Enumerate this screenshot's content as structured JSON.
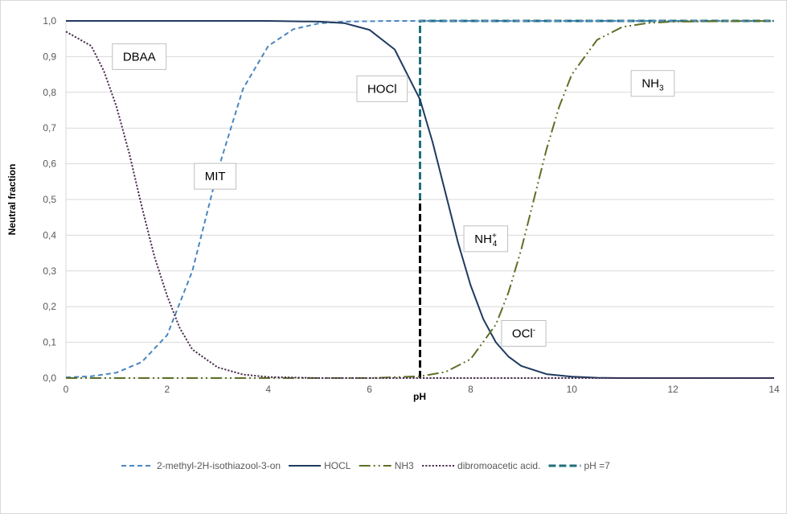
{
  "chart_data": {
    "type": "line",
    "xlabel": "pH",
    "ylabel": "Neutral fraction",
    "xlim": [
      0,
      14
    ],
    "ylim": [
      0,
      1
    ],
    "grid": true,
    "legend_placement": "bottom",
    "x_ticks": [
      "0",
      "2",
      "4",
      "6",
      "8",
      "10",
      "12",
      "14"
    ],
    "y_ticks": [
      "0,0",
      "0,1",
      "0,2",
      "0,3",
      "0,4",
      "0,5",
      "0,6",
      "0,7",
      "0,8",
      "0,9",
      "1,0"
    ],
    "series": [
      {
        "name": "2-methyl-2H-isothiazool-3-on",
        "color": "#4a86c0",
        "style": "dash",
        "x": [
          0,
          0.5,
          1,
          1.5,
          2,
          2.5,
          3,
          3.5,
          4,
          4.5,
          5,
          5.5,
          6,
          6.5,
          7,
          8,
          10,
          14
        ],
        "y": [
          0.002,
          0.005,
          0.015,
          0.045,
          0.12,
          0.3,
          0.58,
          0.81,
          0.93,
          0.977,
          0.993,
          0.998,
          0.999,
          1.0,
          1.0,
          1.0,
          1.0,
          1.0
        ]
      },
      {
        "name": "HOCL",
        "color": "#1f3a5f",
        "style": "solid",
        "x": [
          0,
          4,
          5,
          5.5,
          6,
          6.5,
          7,
          7.25,
          7.5,
          7.75,
          8,
          8.25,
          8.5,
          8.75,
          9,
          9.5,
          10,
          10.5,
          11,
          14
        ],
        "y": [
          1.0,
          1.0,
          0.998,
          0.994,
          0.975,
          0.92,
          0.78,
          0.66,
          0.52,
          0.38,
          0.26,
          0.165,
          0.1,
          0.06,
          0.034,
          0.011,
          0.004,
          0.001,
          0.0,
          0.0
        ]
      },
      {
        "name": "NH3",
        "color": "#5d7027",
        "style": "dashdotdot",
        "x": [
          0,
          6,
          7,
          7.5,
          8,
          8.5,
          8.75,
          9,
          9.25,
          9.5,
          9.75,
          10,
          10.5,
          11,
          11.5,
          12,
          14
        ],
        "y": [
          0.0,
          0.0,
          0.005,
          0.017,
          0.053,
          0.15,
          0.24,
          0.36,
          0.5,
          0.64,
          0.76,
          0.85,
          0.947,
          0.983,
          0.994,
          0.998,
          1.0
        ]
      },
      {
        "name": "dibromoacetic acid.",
        "color": "#4b2d4f",
        "style": "dot",
        "x": [
          0,
          0.5,
          0.75,
          1,
          1.25,
          1.5,
          1.75,
          2,
          2.25,
          2.5,
          3,
          3.5,
          4,
          5,
          6,
          14
        ],
        "y": [
          0.97,
          0.93,
          0.86,
          0.76,
          0.63,
          0.48,
          0.34,
          0.23,
          0.14,
          0.08,
          0.03,
          0.01,
          0.003,
          0.0,
          0.0,
          0.0
        ]
      },
      {
        "name": "pH =7",
        "color": "#1f6f7a",
        "style": "longdash",
        "x": [
          7,
          7,
          14
        ],
        "y": [
          0,
          1,
          1
        ]
      }
    ],
    "annotations": [
      {
        "id": "dbaa",
        "text": "DBAA",
        "x": 1.45,
        "y": 0.9,
        "color": "#000000"
      },
      {
        "id": "mit",
        "text": "MIT",
        "x": 2.95,
        "y": 0.565,
        "color": "#000000"
      },
      {
        "id": "hocl",
        "text": "HOCl",
        "x": 6.25,
        "y": 0.81,
        "color": "#000000"
      },
      {
        "id": "nh3",
        "text": "NH",
        "sub": "3",
        "x": 11.6,
        "y": 0.825,
        "color": "#000000"
      },
      {
        "id": "nh4",
        "text": "NH",
        "sup": "+",
        "sub": "4",
        "x": 8.3,
        "y": 0.39,
        "color": "#000000"
      },
      {
        "id": "ocl",
        "text": "OCl",
        "sup": "-",
        "x": 9.05,
        "y": 0.125,
        "color": "#000000"
      }
    ],
    "reference_lines": [
      {
        "x": 7,
        "y_from": 0,
        "y_to": 0.5,
        "color": "#000000",
        "style": "longdash"
      }
    ]
  }
}
